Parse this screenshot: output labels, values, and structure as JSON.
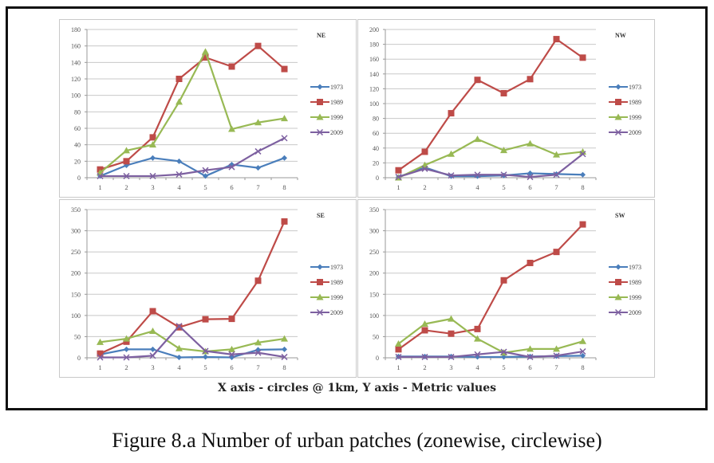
{
  "colors": {
    "1973": "#4a7ebb",
    "1989": "#be4b48",
    "1999": "#98b954",
    "2009": "#7d60a0",
    "grid": "#c8c8c8",
    "axis_text": "#555555"
  },
  "axis_caption": "X axis - circles @ 1km, Y axis - Metric values",
  "figure_caption": "Figure 8.a  Number of urban patches (zonewise, circlewise)",
  "chart_data": [
    {
      "type": "line",
      "title": "NE",
      "categories": [
        "1",
        "2",
        "3",
        "4",
        "5",
        "6",
        "7",
        "8"
      ],
      "ylim": [
        0,
        180
      ],
      "yticks": [
        0,
        20,
        40,
        60,
        80,
        100,
        120,
        140,
        160,
        180
      ],
      "grid": true,
      "legend": "right",
      "series": [
        {
          "name": "1973",
          "marker": "diamond",
          "values": [
            2,
            15,
            24,
            20,
            2,
            16,
            12,
            24
          ]
        },
        {
          "name": "1989",
          "marker": "square",
          "values": [
            10,
            20,
            49,
            120,
            146,
            135,
            160,
            132
          ]
        },
        {
          "name": "1999",
          "marker": "triangle",
          "values": [
            6,
            33,
            40,
            92,
            153,
            59,
            67,
            72
          ]
        },
        {
          "name": "2009",
          "marker": "x",
          "values": [
            2,
            2,
            2,
            4,
            9,
            13,
            32,
            48
          ]
        }
      ]
    },
    {
      "type": "line",
      "title": "NW",
      "categories": [
        "1",
        "2",
        "3",
        "4",
        "5",
        "6",
        "7",
        "8"
      ],
      "ylim": [
        0,
        200
      ],
      "yticks": [
        0,
        20,
        40,
        60,
        80,
        100,
        120,
        140,
        160,
        180,
        200
      ],
      "grid": true,
      "legend": "right",
      "series": [
        {
          "name": "1973",
          "marker": "diamond",
          "values": [
            1,
            14,
            2,
            2,
            3,
            6,
            5,
            4
          ]
        },
        {
          "name": "1989",
          "marker": "square",
          "values": [
            10,
            35,
            87,
            132,
            114,
            133,
            187,
            162
          ]
        },
        {
          "name": "1999",
          "marker": "triangle",
          "values": [
            0,
            17,
            32,
            52,
            37,
            46,
            31,
            35
          ]
        },
        {
          "name": "2009",
          "marker": "x",
          "values": [
            1,
            12,
            3,
            4,
            4,
            1,
            4,
            32
          ]
        }
      ]
    },
    {
      "type": "line",
      "title": "SE",
      "categories": [
        "1",
        "2",
        "3",
        "4",
        "5",
        "6",
        "7",
        "8"
      ],
      "ylim": [
        0,
        350
      ],
      "yticks": [
        0,
        50,
        100,
        150,
        200,
        250,
        300,
        350
      ],
      "grid": true,
      "legend": "right",
      "series": [
        {
          "name": "1973",
          "marker": "diamond",
          "values": [
            8,
            20,
            20,
            1,
            2,
            1,
            19,
            20
          ]
        },
        {
          "name": "1989",
          "marker": "square",
          "values": [
            10,
            38,
            110,
            72,
            91,
            92,
            182,
            322
          ]
        },
        {
          "name": "1999",
          "marker": "triangle",
          "values": [
            37,
            45,
            63,
            22,
            15,
            20,
            36,
            45
          ]
        },
        {
          "name": "2009",
          "marker": "x",
          "values": [
            1,
            1,
            5,
            75,
            16,
            8,
            12,
            2
          ]
        }
      ]
    },
    {
      "type": "line",
      "title": "SW",
      "categories": [
        "1",
        "2",
        "3",
        "4",
        "5",
        "6",
        "7",
        "8"
      ],
      "ylim": [
        0,
        350
      ],
      "yticks": [
        0,
        50,
        100,
        150,
        200,
        250,
        300,
        350
      ],
      "grid": true,
      "legend": "right",
      "series": [
        {
          "name": "1973",
          "marker": "diamond",
          "values": [
            3,
            3,
            3,
            2,
            2,
            3,
            4,
            5
          ]
        },
        {
          "name": "1989",
          "marker": "square",
          "values": [
            20,
            65,
            57,
            68,
            183,
            224,
            250,
            315
          ]
        },
        {
          "name": "1999",
          "marker": "triangle",
          "values": [
            33,
            80,
            92,
            45,
            12,
            21,
            21,
            39
          ]
        },
        {
          "name": "2009",
          "marker": "x",
          "values": [
            2,
            2,
            2,
            8,
            14,
            2,
            5,
            15
          ]
        }
      ]
    }
  ]
}
